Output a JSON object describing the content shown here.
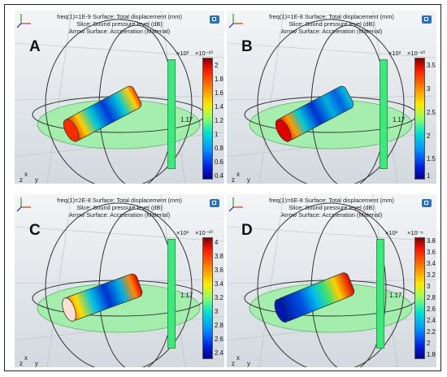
{
  "panels": [
    {
      "id": "A",
      "header": [
        "freq(1)=1E-9  Surface: Total displacement (mm)",
        "Slice: Sound pressure level (dB)",
        "Arrow Surface: Acceleration (Material)"
      ],
      "colorbar_exp": "×10⁻¹⁰",
      "ticks": [
        "2",
        "1.8",
        "1.6",
        "1.4",
        "1.2",
        "1",
        "0.8",
        "0.6",
        "0.4"
      ],
      "bar_mult": "×10²",
      "bar_value": "1.17",
      "axis_labels": [
        "x",
        "z",
        "y"
      ]
    },
    {
      "id": "B",
      "header": [
        "freq(1)=1E-8  Surface: Total displacement (mm)",
        "Slice: Sound pressure level (dB)",
        "Arrow Surface: Acceleration (Material)"
      ],
      "colorbar_exp": "×10⁻¹⁰",
      "ticks": [
        "3.5",
        "3",
        "2.5",
        "2",
        "1.5",
        "1"
      ],
      "bar_mult": "×10²",
      "bar_value": "1.17",
      "axis_labels": [
        "x",
        "z",
        "y"
      ]
    },
    {
      "id": "C",
      "header": [
        "freq(1)=2E-8  Surface: Total displacement (mm)",
        "Slice: Sound pressure level (dB)",
        "Arrow Surface: Acceleration (Material)"
      ],
      "colorbar_exp": "×10⁻¹⁰",
      "ticks": [
        "4",
        "3.8",
        "3.6",
        "3.4",
        "3.2",
        "3",
        "2.8",
        "2.6",
        "2.4"
      ],
      "bar_mult": "×10²",
      "bar_value": "1.17",
      "axis_labels": [
        "x",
        "z",
        "y"
      ]
    },
    {
      "id": "D",
      "header": [
        "freq(1)=6E-8  Surface: Total displacement (mm)",
        "Slice: Sound pressure level (dB)",
        "Arrow Surface: Acceleration (Material)"
      ],
      "colorbar_exp": "×10⁻⁹",
      "ticks": [
        "3.8",
        "3.6",
        "3.4",
        "3.2",
        "3",
        "2.8",
        "2.6",
        "2.4",
        "2.2",
        "2",
        "1.8"
      ],
      "bar_mult": "×10²",
      "bar_value": "1.17",
      "axis_labels": [
        "x",
        "z",
        "y"
      ]
    }
  ]
}
